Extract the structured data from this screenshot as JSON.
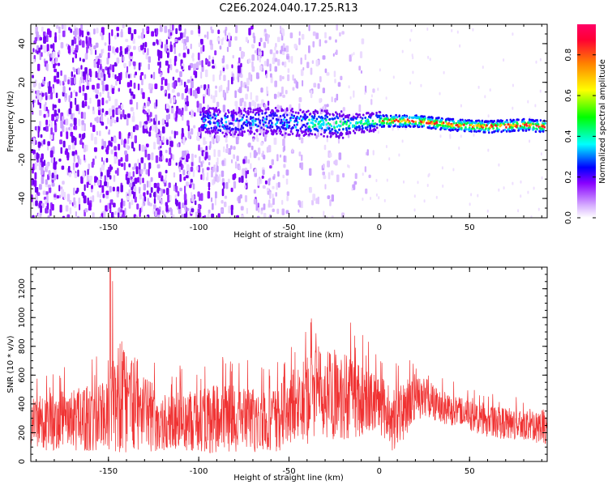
{
  "title": "C2E6.2024.040.17.25.R13",
  "chart_data": [
    {
      "type": "heatmap",
      "title": "C2E6.2024.040.17.25.R13",
      "xlabel": "Height of straight line (km)",
      "ylabel": "Frequency (Hz)",
      "xlim": [
        -193,
        93
      ],
      "ylim": [
        -50,
        50
      ],
      "xticks": [
        -150,
        -100,
        -50,
        0,
        50
      ],
      "yticks": [
        -40,
        -20,
        0,
        20,
        40
      ],
      "colorbar": {
        "label": "Normalized spectral amplitude",
        "range": [
          0,
          0.95
        ],
        "ticks": [
          0.0,
          0.2,
          0.4,
          0.6,
          0.8
        ],
        "colors": [
          "#ffffff",
          "#d9b3ff",
          "#8800ff",
          "#0000ff",
          "#00ffff",
          "#00ff00",
          "#ffff00",
          "#ff7f00",
          "#ff0055"
        ]
      },
      "ridge": [
        {
          "x": -90,
          "y": -1
        },
        {
          "x": -60,
          "y": 0
        },
        {
          "x": -40,
          "y": -1
        },
        {
          "x": -20,
          "y": -2
        },
        {
          "x": 0,
          "y": 0
        },
        {
          "x": 20,
          "y": 0
        },
        {
          "x": 40,
          "y": -2
        },
        {
          "x": 60,
          "y": -3
        },
        {
          "x": 80,
          "y": -2
        },
        {
          "x": 93,
          "y": -3
        }
      ]
    },
    {
      "type": "line",
      "xlabel": "Height of straight line (km)",
      "ylabel": "SNR (10 * v/v)",
      "xlim": [
        -193,
        93
      ],
      "ylim": [
        0,
        1350
      ],
      "xticks": [
        -150,
        -100,
        -50,
        0,
        50
      ],
      "yticks": [
        0,
        200,
        400,
        600,
        800,
        1000,
        1200
      ],
      "color": "#f03232",
      "envelope": [
        {
          "x": -193,
          "low": 80,
          "high": 600
        },
        {
          "x": -150,
          "low": 70,
          "high": 760
        },
        {
          "x": -149,
          "low": 60,
          "high": 1350
        },
        {
          "x": -120,
          "low": 70,
          "high": 640
        },
        {
          "x": -100,
          "low": 60,
          "high": 740
        },
        {
          "x": -60,
          "low": 60,
          "high": 700
        },
        {
          "x": -40,
          "low": 120,
          "high": 980
        },
        {
          "x": -35,
          "low": 150,
          "high": 1100
        },
        {
          "x": -20,
          "low": 150,
          "high": 1040
        },
        {
          "x": 0,
          "low": 200,
          "high": 760
        },
        {
          "x": 10,
          "low": 30,
          "high": 700
        },
        {
          "x": 20,
          "low": 300,
          "high": 760
        },
        {
          "x": 40,
          "low": 250,
          "high": 560
        },
        {
          "x": 60,
          "low": 170,
          "high": 470
        },
        {
          "x": 93,
          "low": 120,
          "high": 460
        }
      ]
    }
  ]
}
